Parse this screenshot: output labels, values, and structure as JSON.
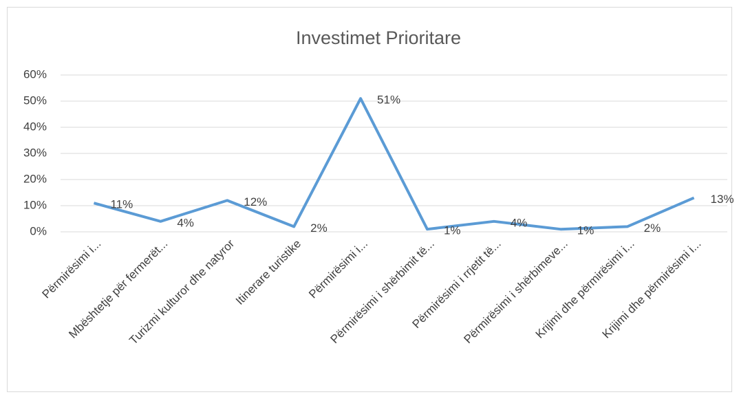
{
  "chart_data": {
    "type": "line",
    "title": "Investimet Prioritare",
    "categories": [
      "Përmirësimi i...",
      "Mbështetje për fermerët...",
      "Turizmi kulturor dhe natyror",
      "Itinerare turistike",
      "Përmirësimi i...",
      "Përmirësimi i shërbimit të...",
      "Përmirësimi i rrjetit të...",
      "Përmirësimi i shërbimeve...",
      "Krijimi dhe përmirësimi i...",
      "Krijimi dhe përmirësimi i..."
    ],
    "series": [
      {
        "name": "Investimet Prioritare",
        "color": "#5b9bd5",
        "values": [
          11,
          4,
          12,
          2,
          51,
          1,
          4,
          1,
          2,
          13
        ],
        "value_labels": [
          "11%",
          "4%",
          "12%",
          "2%",
          "51%",
          "1%",
          "4%",
          "1%",
          "2%",
          "13%"
        ]
      }
    ],
    "ylim": [
      0,
      60
    ],
    "yticks": [
      {
        "value": 0,
        "label": "0%"
      },
      {
        "value": 10,
        "label": "10%"
      },
      {
        "value": 20,
        "label": "20%"
      },
      {
        "value": 30,
        "label": "30%"
      },
      {
        "value": 40,
        "label": "40%"
      },
      {
        "value": 50,
        "label": "50%"
      },
      {
        "value": 60,
        "label": "60%"
      }
    ],
    "grid": true
  }
}
